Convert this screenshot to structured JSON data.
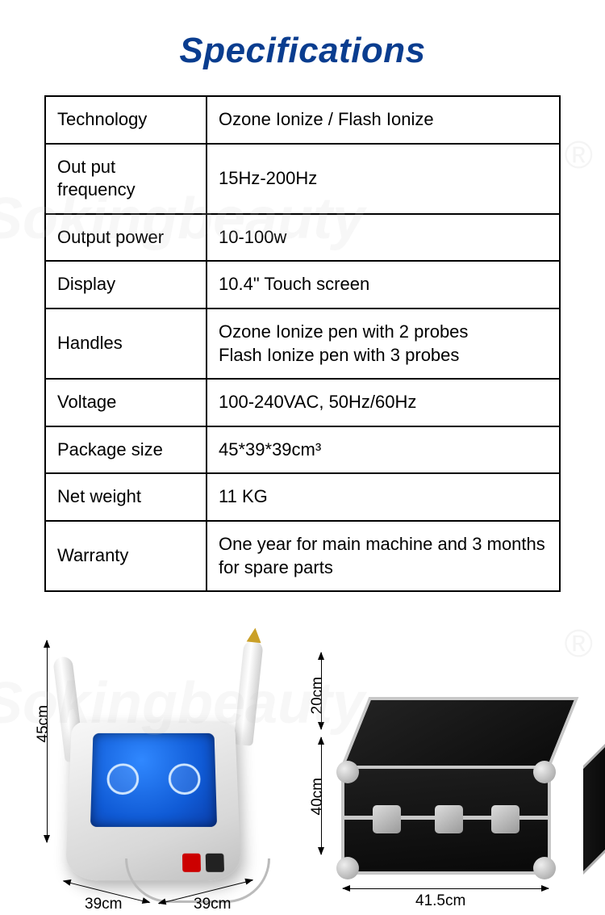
{
  "title": "Specifications",
  "table": {
    "rows": [
      {
        "label": "Technology",
        "value": "Ozone  Ionize / Flash Ionize"
      },
      {
        "label": "Out put frequency",
        "value": "15Hz-200Hz"
      },
      {
        "label": "Output power",
        "value": "10-100w"
      },
      {
        "label": "Display",
        "value": "10.4\" Touch screen"
      },
      {
        "label": "Handles",
        "value": "Ozone  Ionize pen with 2 probes\nFlash Ionize pen with 3 probes"
      },
      {
        "label": "Voltage",
        "value": "100-240VAC, 50Hz/60Hz"
      },
      {
        "label": "Package size",
        "value": "45*39*39cm³"
      },
      {
        "label": "Net weight",
        "value": "11 KG"
      },
      {
        "label": "Warranty",
        "value": "One year for main machine and 3 months for spare parts"
      }
    ]
  },
  "device": {
    "height": "45cm",
    "depth1": "39cm",
    "depth2": "39cm"
  },
  "case": {
    "height": "20cm",
    "depth": "40cm",
    "width": "41.5cm"
  },
  "watermark": "Sokingbeauty",
  "style": {
    "title_color": "#0a3d8f",
    "title_fontsize": 44,
    "table_border_color": "#000000",
    "table_fontsize": 22,
    "dim_fontsize": 19,
    "background": "#ffffff",
    "screen_color_center": "#3088ff",
    "screen_color_edge": "#0a3ca8",
    "metal_color": "#c8c8c8",
    "case_body_color": "#111111"
  }
}
